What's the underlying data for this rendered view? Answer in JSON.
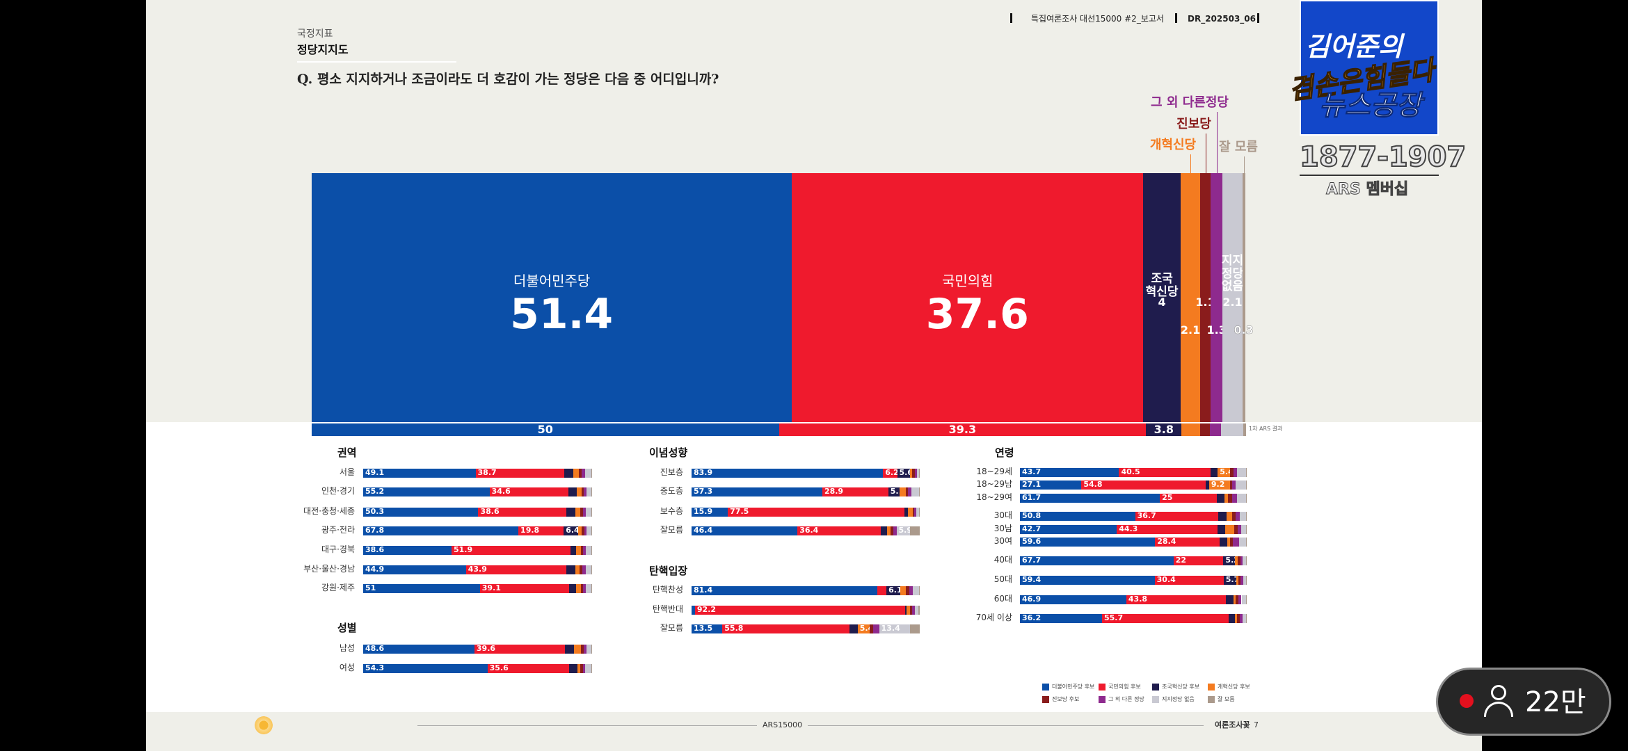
{
  "header": {
    "section": "국정지표",
    "title": "정당지지도",
    "report": "특집여론조사 대선15000 #2_보고서",
    "code": "DR_202503_06"
  },
  "legend": {
    "names": [
      "더불어민주당 후보",
      "국민의힘 후보",
      "조국혁신당 후보",
      "개혁신당 후보",
      "진보당 후보",
      "그 외 다른 정당",
      "지지정당 없음",
      "잘 모름"
    ],
    "colors": [
      "#0b4fa8",
      "#ef1a2d",
      "#1f1c4d",
      "#f47b20",
      "#8a1c1c",
      "#8e2a8e",
      "#c9c9d2",
      "#ab9a8c"
    ]
  },
  "chart_data": [
    {
      "type": "bar",
      "stacked": true,
      "title": "Q. 평소 지지하거나 조금이라도 더 호감이 가는 정당은 다음 중 어디입니까?",
      "categories": [
        "더불어민주당",
        "국민의힘",
        "조국\n혁신당",
        "개혁신당",
        "진보당",
        "그 외 다른정당",
        "지지\n정당\n없음",
        "잘 모름"
      ],
      "values": [
        51.4,
        37.6,
        4.0,
        2.1,
        1.1,
        1.3,
        2.1,
        0.3
      ],
      "previous": {
        "label": "1차 ARS 결과",
        "values": [
          50.0,
          39.3,
          3.8,
          2.0,
          1.0,
          1.2,
          2.4,
          0.3
        ]
      }
    },
    {
      "type": "bar",
      "stacked": true,
      "title": "권역",
      "categories": [
        "서울",
        "인천·경기",
        "대전·충청·세종",
        "광주·전라",
        "대구·경북",
        "부산·울산·경남",
        "강원·제주"
      ],
      "values": [
        [
          49.1,
          38.7,
          4.0,
          2.5,
          1.2,
          1.5,
          2.7,
          0.3
        ],
        [
          55.2,
          34.6,
          3.5,
          2.0,
          1.0,
          1.2,
          2.2,
          0.3
        ],
        [
          50.3,
          38.6,
          3.8,
          2.0,
          1.2,
          1.3,
          2.5,
          0.3
        ],
        [
          67.8,
          19.8,
          6.4,
          1.5,
          1.2,
          1.0,
          2.0,
          0.3
        ],
        [
          38.6,
          51.9,
          2.5,
          2.0,
          1.0,
          1.2,
          2.5,
          0.3
        ],
        [
          44.9,
          43.9,
          3.8,
          2.0,
          1.2,
          1.4,
          2.5,
          0.3
        ],
        [
          51.0,
          39.1,
          3.0,
          2.0,
          1.0,
          1.3,
          2.3,
          0.3
        ]
      ]
    },
    {
      "type": "bar",
      "stacked": true,
      "title": "성별",
      "categories": [
        "남성",
        "여성"
      ],
      "values": [
        [
          48.6,
          39.6,
          4.0,
          3.0,
          1.2,
          1.3,
          2.0,
          0.3
        ],
        [
          54.3,
          35.6,
          3.8,
          1.2,
          1.0,
          1.2,
          2.6,
          0.3
        ]
      ]
    },
    {
      "type": "bar",
      "stacked": true,
      "title": "이념성향",
      "categories": [
        "진보층",
        "중도층",
        "보수층",
        "잘모름"
      ],
      "values": [
        [
          83.9,
          6.2,
          5.6,
          1.0,
          1.2,
          1.0,
          0.8,
          0.3
        ],
        [
          57.3,
          28.9,
          5.1,
          2.5,
          1.0,
          1.5,
          3.4,
          0.3
        ],
        [
          15.9,
          77.5,
          1.5,
          2.0,
          0.8,
          0.8,
          1.2,
          0.3
        ],
        [
          46.4,
          36.4,
          3.0,
          1.5,
          1.0,
          1.5,
          5.9,
          4.3
        ]
      ]
    },
    {
      "type": "bar",
      "stacked": true,
      "title": "탄핵입장",
      "categories": [
        "탄핵찬성",
        "탄핵반대",
        "잘모름"
      ],
      "values": [
        [
          81.4,
          4.0,
          6.1,
          2.5,
          1.5,
          1.5,
          2.7,
          0.3
        ],
        [
          1.5,
          92.2,
          0.5,
          1.5,
          0.8,
          1.5,
          1.5,
          0.5
        ],
        [
          13.5,
          55.8,
          3.5,
          5.4,
          1.5,
          2.5,
          13.4,
          4.4
        ]
      ]
    },
    {
      "type": "bar",
      "stacked": true,
      "title": "연령",
      "categories": [
        "18~29세",
        "18~29남",
        "18~29여",
        "30대",
        "30남",
        "30여",
        "40대",
        "50대",
        "60대",
        "70세 이상"
      ],
      "values": [
        [
          43.7,
          40.5,
          3.0,
          5.4,
          1.5,
          1.5,
          4.1,
          0.3
        ],
        [
          27.1,
          54.8,
          1.5,
          9.2,
          1.0,
          1.5,
          4.6,
          0.3
        ],
        [
          61.7,
          25.0,
          3.5,
          1.5,
          2.0,
          2.0,
          4.0,
          0.3
        ],
        [
          50.8,
          36.7,
          3.5,
          2.5,
          1.5,
          2.0,
          2.7,
          0.3
        ],
        [
          42.7,
          44.3,
          3.5,
          4.0,
          1.5,
          1.5,
          2.2,
          0.3
        ],
        [
          59.6,
          28.4,
          3.5,
          1.0,
          1.5,
          2.5,
          3.2,
          0.3
        ],
        [
          67.7,
          22.0,
          5.2,
          1.0,
          1.2,
          1.0,
          1.6,
          0.3
        ],
        [
          59.4,
          30.4,
          5.7,
          0.8,
          1.0,
          1.2,
          1.2,
          0.3
        ],
        [
          46.9,
          43.8,
          3.5,
          1.0,
          1.0,
          1.5,
          2.0,
          0.3
        ],
        [
          36.2,
          55.7,
          3.0,
          0.8,
          1.2,
          1.2,
          1.6,
          0.3
        ]
      ]
    }
  ],
  "footer": {
    "center": "ARS15000",
    "brand": "여론조사꽃",
    "page": "7"
  },
  "overlay": {
    "logo_top": "김어준의",
    "logo_mid": "겸손은힘들다",
    "logo_bottom": "뉴스공장",
    "phone": "1877-1907",
    "membership": "ARS 멤버십"
  },
  "viewers": "22만"
}
